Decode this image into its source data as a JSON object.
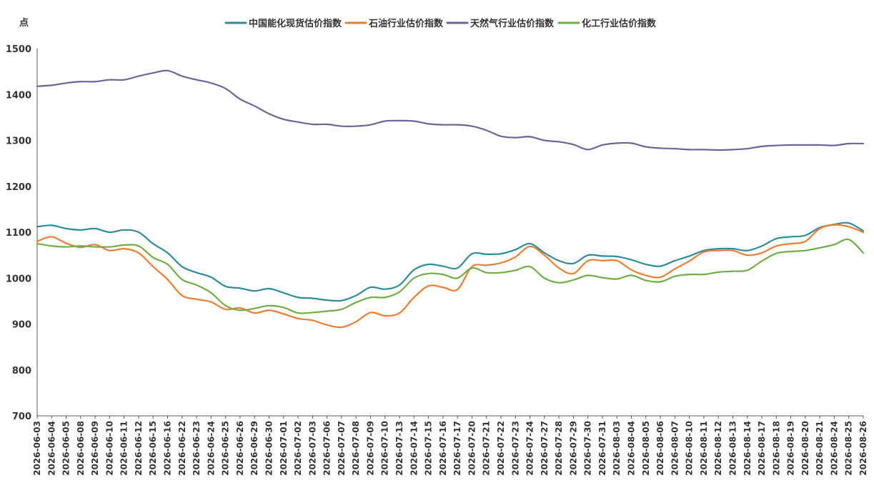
{
  "chart_data": {
    "type": "line",
    "title": "",
    "xlabel": "",
    "ylabel": "点",
    "ylim": [
      700,
      1500
    ],
    "yticks": [
      700,
      800,
      900,
      1000,
      1100,
      1200,
      1300,
      1400,
      1500
    ],
    "grid": false,
    "legend_position": "top",
    "categories": [
      "2026-06-03",
      "2026-06-04",
      "2026-06-05",
      "2026-06-08",
      "2026-06-09",
      "2026-06-10",
      "2026-06-11",
      "2026-06-12",
      "2026-06-15",
      "2026-06-16",
      "2026-06-22",
      "2026-06-23",
      "2026-06-24",
      "2026-06-25",
      "2026-06-26",
      "2026-06-29",
      "2026-06-30",
      "2026-07-01",
      "2026-07-02",
      "2026-07-03",
      "2026-07-06",
      "2026-07-07",
      "2026-07-08",
      "2026-07-09",
      "2026-07-10",
      "2026-07-13",
      "2026-07-14",
      "2026-07-15",
      "2026-07-16",
      "2026-07-17",
      "2026-07-20",
      "2026-07-21",
      "2026-07-22",
      "2026-07-23",
      "2026-07-24",
      "2026-07-27",
      "2026-07-28",
      "2026-07-29",
      "2026-07-30",
      "2026-07-31",
      "2026-08-03",
      "2026-08-04",
      "2026-08-05",
      "2026-08-06",
      "2026-08-07",
      "2026-08-10",
      "2026-08-11",
      "2026-08-12",
      "2026-08-13",
      "2026-08-14",
      "2026-08-17",
      "2026-08-18",
      "2026-08-19",
      "2026-08-20",
      "2026-08-21",
      "2026-08-24",
      "2026-08-25",
      "2026-08-26"
    ],
    "series": [
      {
        "name": "中国能化现货估价指数",
        "color": "#2E8B9A",
        "values": [
          1112,
          1115,
          1108,
          1105,
          1108,
          1100,
          1105,
          1100,
          1075,
          1055,
          1025,
          1012,
          1002,
          982,
          978,
          972,
          977,
          968,
          958,
          956,
          952,
          951,
          962,
          980,
          976,
          985,
          1018,
          1030,
          1026,
          1022,
          1053,
          1052,
          1053,
          1062,
          1075,
          1055,
          1038,
          1032,
          1050,
          1048,
          1047,
          1040,
          1030,
          1026,
          1038,
          1048,
          1060,
          1064,
          1064,
          1060,
          1070,
          1086,
          1090,
          1093,
          1110,
          1117,
          1120,
          1103
        ]
      },
      {
        "name": "石油行业估价指数",
        "color": "#ED7D31",
        "values": [
          1080,
          1090,
          1076,
          1067,
          1073,
          1060,
          1064,
          1055,
          1025,
          997,
          962,
          954,
          948,
          932,
          935,
          924,
          930,
          922,
          912,
          908,
          898,
          893,
          905,
          925,
          918,
          924,
          958,
          983,
          980,
          975,
          1025,
          1028,
          1033,
          1046,
          1069,
          1050,
          1022,
          1010,
          1038,
          1038,
          1038,
          1018,
          1006,
          1002,
          1020,
          1037,
          1057,
          1060,
          1060,
          1050,
          1055,
          1070,
          1075,
          1080,
          1108,
          1116,
          1112,
          1100
        ]
      },
      {
        "name": "天然气行业估价指数",
        "color": "#6B6496",
        "values": [
          1418,
          1420,
          1425,
          1428,
          1428,
          1432,
          1432,
          1440,
          1447,
          1452,
          1440,
          1432,
          1425,
          1413,
          1390,
          1375,
          1358,
          1346,
          1340,
          1335,
          1335,
          1331,
          1331,
          1334,
          1342,
          1343,
          1342,
          1336,
          1334,
          1334,
          1331,
          1322,
          1309,
          1306,
          1308,
          1300,
          1297,
          1291,
          1280,
          1290,
          1294,
          1294,
          1286,
          1283,
          1282,
          1280,
          1280,
          1279,
          1280,
          1282,
          1287,
          1289,
          1290,
          1290,
          1290,
          1289,
          1293,
          1293
        ]
      },
      {
        "name": "化工行业估价指数",
        "color": "#70AD47",
        "values": [
          1075,
          1070,
          1068,
          1070,
          1068,
          1068,
          1072,
          1070,
          1045,
          1030,
          997,
          985,
          968,
          940,
          930,
          934,
          940,
          936,
          924,
          925,
          928,
          932,
          947,
          958,
          958,
          970,
          1000,
          1010,
          1008,
          1000,
          1022,
          1012,
          1012,
          1017,
          1025,
          1000,
          990,
          996,
          1006,
          1001,
          998,
          1006,
          995,
          992,
          1004,
          1008,
          1008,
          1013,
          1015,
          1017,
          1037,
          1054,
          1058,
          1060,
          1066,
          1073,
          1084,
          1055
        ]
      }
    ]
  }
}
